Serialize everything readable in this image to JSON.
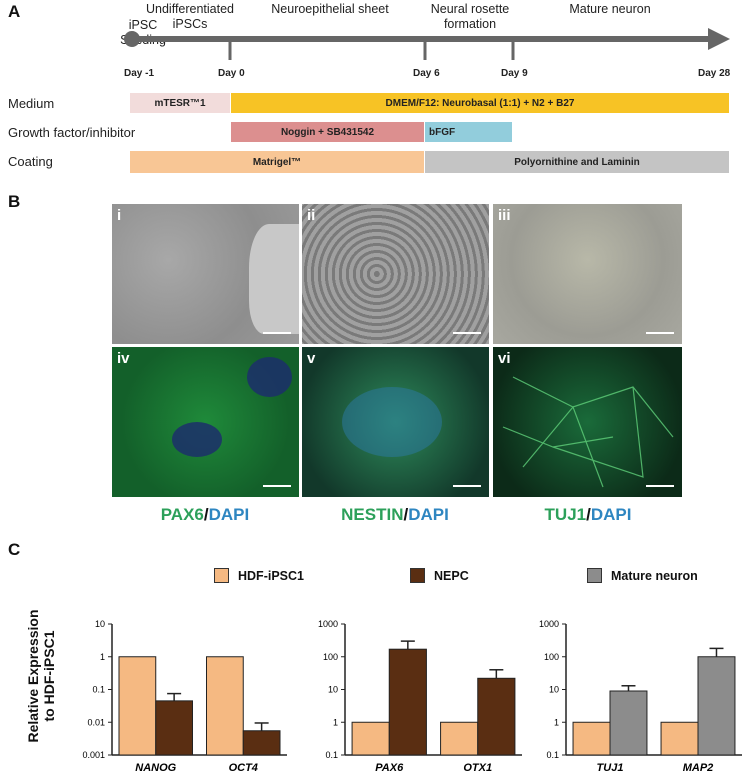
{
  "panels": {
    "A": "A",
    "B": "B",
    "C": "C"
  },
  "timeline": {
    "stages": [
      "iPSC\nSeeding",
      "Undifferentiated\niPSCs",
      "Neuroepithelial sheet",
      "Neural rosette\nformation",
      "Mature neuron"
    ],
    "days": [
      "Day -1",
      "Day 0",
      "Day 6",
      "Day 9",
      "Day 28"
    ]
  },
  "rows": {
    "medium": {
      "label": "Medium",
      "bars": [
        "mTESR™1",
        "DMEM/F12: Neurobasal (1:1) + N2 + B27"
      ]
    },
    "growth": {
      "label": "Growth factor/inhibitor",
      "bars": [
        "Noggin + SB431542",
        "bFGF"
      ]
    },
    "coating": {
      "label": "Coating",
      "bars": [
        "Matrigel™",
        "Polyornithine and Laminin"
      ]
    }
  },
  "colors": {
    "mtesr": "#f2dcdb",
    "dmem": "#f7c325",
    "noggin": "#dc8f8f",
    "bfgf": "#92cddc",
    "matrigel": "#f8c695",
    "poly": "#c4c4c4",
    "green": "#2ca05a",
    "blue": "#2e86c1",
    "hdf": "#f5b982",
    "nepc": "#5a2e12",
    "mature": "#8c8c8c"
  },
  "images": {
    "labels": [
      "i",
      "ii",
      "iii",
      "iv",
      "v",
      "vi"
    ]
  },
  "stains": [
    {
      "marker": "PAX6",
      "slash": "/",
      "dapi": "DAPI"
    },
    {
      "marker": "NESTIN",
      "slash": "/",
      "dapi": "DAPI"
    },
    {
      "marker": "TUJ1",
      "slash": "/",
      "dapi": "DAPI"
    }
  ],
  "legend": [
    "HDF-iPSC1",
    "NEPC",
    "Mature neuron"
  ],
  "ylabel": "Relative Expression\nto HDF-iPSC1",
  "chart_data": [
    {
      "type": "bar",
      "scale": "log",
      "ylim": [
        0.001,
        10
      ],
      "yticks": [
        "10",
        "1",
        "0.1",
        "0.01",
        "0.001"
      ],
      "categories": [
        "NANOG",
        "OCT4"
      ],
      "series": [
        {
          "name": "HDF-iPSC1",
          "values": [
            1,
            1
          ]
        },
        {
          "name": "NEPC",
          "values": [
            0.045,
            0.0055
          ],
          "errors": [
            0.075,
            0.0095
          ]
        }
      ]
    },
    {
      "type": "bar",
      "scale": "log",
      "ylim": [
        0.1,
        1000
      ],
      "yticks": [
        "1000",
        "100",
        "10",
        "1",
        "0.1"
      ],
      "categories": [
        "PAX6",
        "OTX1"
      ],
      "series": [
        {
          "name": "HDF-iPSC1",
          "values": [
            1,
            1
          ]
        },
        {
          "name": "NEPC",
          "values": [
            170,
            22
          ],
          "errors": [
            300,
            40
          ]
        }
      ]
    },
    {
      "type": "bar",
      "scale": "log",
      "ylim": [
        0.1,
        1000
      ],
      "yticks": [
        "1000",
        "100",
        "10",
        "1",
        "0.1"
      ],
      "categories": [
        "TUJ1",
        "MAP2"
      ],
      "series": [
        {
          "name": "HDF-iPSC1",
          "values": [
            1,
            1
          ]
        },
        {
          "name": "Mature neuron",
          "values": [
            9,
            100
          ],
          "errors": [
            13,
            180
          ]
        }
      ]
    }
  ]
}
